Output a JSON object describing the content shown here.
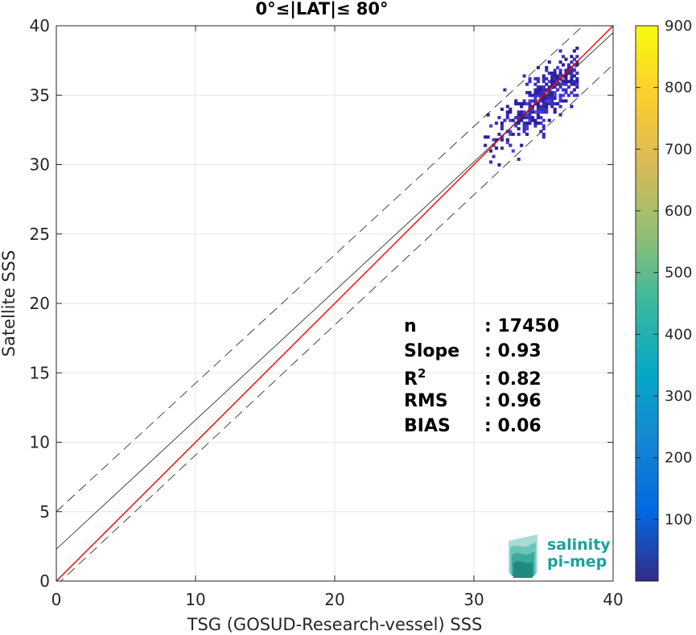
{
  "chart_data": {
    "type": "heatmap",
    "title": "0°≤|LAT|≤ 80°",
    "xlabel": "TSG (GOSUD-Research-vessel) SSS",
    "ylabel": "Satellite SSS",
    "xlim": [
      0,
      40
    ],
    "ylim": [
      0,
      40
    ],
    "xticks": [
      "0",
      "10",
      "20",
      "30",
      "40"
    ],
    "yticks": [
      "0",
      "5",
      "10",
      "15",
      "20",
      "25",
      "30",
      "35",
      "40"
    ],
    "grid": true,
    "colorbar": {
      "range": [
        0,
        900
      ],
      "ticks": [
        "100",
        "200",
        "300",
        "400",
        "500",
        "600",
        "700",
        "800",
        "900"
      ],
      "colormap": "parula"
    },
    "density_region": {
      "x_range": [
        30.5,
        37.5
      ],
      "y_range": [
        29.5,
        39.5
      ],
      "center": [
        35,
        34.8
      ],
      "counts_range": [
        1,
        100
      ]
    },
    "lines": [
      {
        "kind": "identity",
        "color": "#ff0000",
        "style": "solid",
        "x": [
          0,
          40
        ],
        "y": [
          0,
          40
        ]
      },
      {
        "kind": "regression",
        "color": "#333333",
        "style": "solid",
        "x": [
          0,
          40
        ],
        "y": [
          2.3,
          39.5
        ]
      },
      {
        "kind": "upper-bound",
        "color": "#333333",
        "style": "dashed",
        "x": [
          0,
          40
        ],
        "y": [
          5,
          42
        ]
      },
      {
        "kind": "lower-bound",
        "color": "#333333",
        "style": "dashed",
        "x": [
          0,
          40
        ],
        "y": [
          -0.3,
          37.2
        ]
      }
    ],
    "stats": [
      {
        "label": "n",
        "sep": ":",
        "value": "17450"
      },
      {
        "label": "Slope",
        "sep": ":",
        "value": "0.93"
      },
      {
        "label": "R",
        "sup": "2",
        "sep": ":",
        "value": "0.82"
      },
      {
        "label": "RMS",
        "sep": ":",
        "value": "0.96"
      },
      {
        "label": "BIAS",
        "sep": ":",
        "value": "0.06"
      }
    ]
  },
  "logo": {
    "line1": "salinity",
    "line2": "pi-mep"
  },
  "colors": {
    "accent": "#18a39a",
    "identity": "#ff0000",
    "density": "#3b2fbf"
  }
}
